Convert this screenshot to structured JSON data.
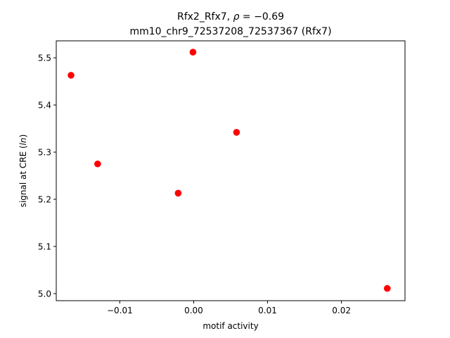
{
  "chart_data": {
    "type": "scatter",
    "title_line1_prefix": "Rfx2_Rfx7, ",
    "title_line1_rho": "ρ",
    "title_line1_suffix": " = −0.69",
    "title_line2": "mm10_chr9_72537208_72537367 (Rfx7)",
    "xlabel": "motif activity",
    "ylabel": "signal at CRE (ln)",
    "xlim": [
      -0.0186,
      0.0286
    ],
    "ylim": [
      4.985,
      5.536
    ],
    "xticks": [
      -0.01,
      0.0,
      0.01,
      0.02
    ],
    "xtick_labels": [
      "−0.01",
      "0.00",
      "0.01",
      "0.02"
    ],
    "yticks": [
      5.0,
      5.1,
      5.2,
      5.3,
      5.4,
      5.5
    ],
    "ytick_labels": [
      "5.0",
      "5.1",
      "5.2",
      "5.3",
      "5.4",
      "5.5"
    ],
    "marker_color": "#ff0000",
    "points": [
      {
        "x": -0.0166,
        "y": 5.463
      },
      {
        "x": -0.013,
        "y": 5.275
      },
      {
        "x": -0.0021,
        "y": 5.213
      },
      {
        "x": -0.0001,
        "y": 5.512
      },
      {
        "x": 0.0058,
        "y": 5.342
      },
      {
        "x": 0.0262,
        "y": 5.011
      }
    ]
  }
}
